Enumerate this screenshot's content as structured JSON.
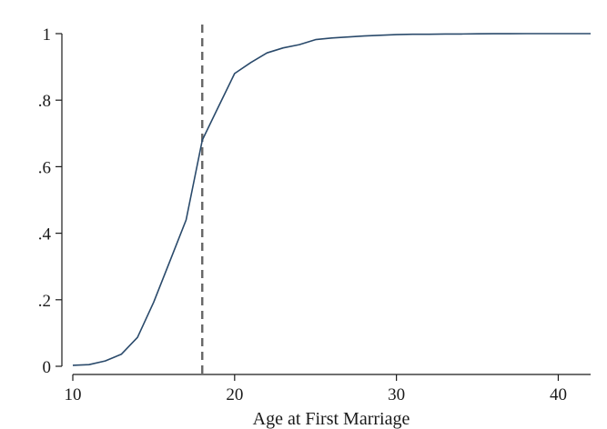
{
  "chart_data": {
    "type": "line",
    "title": "",
    "xlabel": "Age at First Marriage",
    "ylabel": "",
    "xlim": [
      10,
      42
    ],
    "ylim": [
      0,
      1
    ],
    "x_ticks": [
      10,
      20,
      30,
      40
    ],
    "x_tick_labels": [
      "10",
      "20",
      "30",
      "40"
    ],
    "y_ticks": [
      0,
      0.2,
      0.4,
      0.6,
      0.8,
      1
    ],
    "y_tick_labels": [
      "0",
      ".2",
      ".4",
      ".6",
      ".8",
      "1"
    ],
    "grid": false,
    "series": [
      {
        "color": "#2a4a6b",
        "x": [
          10,
          11,
          12,
          13,
          14,
          15,
          16,
          17,
          18,
          19,
          20,
          21,
          22,
          23,
          24,
          25,
          26,
          27,
          28,
          29,
          30,
          31,
          32,
          33,
          34,
          35,
          36,
          37,
          38,
          39,
          40,
          41,
          42
        ],
        "values": [
          0.003,
          0.005,
          0.016,
          0.036,
          0.087,
          0.193,
          0.316,
          0.44,
          0.68,
          0.78,
          0.88,
          0.913,
          0.942,
          0.957,
          0.967,
          0.982,
          0.987,
          0.99,
          0.993,
          0.995,
          0.997,
          0.998,
          0.998,
          0.999,
          0.999,
          0.9995,
          0.9997,
          0.9998,
          0.9999,
          1.0,
          1.0,
          1.0,
          1.0
        ]
      }
    ],
    "reference_lines": [
      {
        "axis": "x",
        "value": 18,
        "style": "dashed",
        "color": "#666666"
      }
    ]
  }
}
